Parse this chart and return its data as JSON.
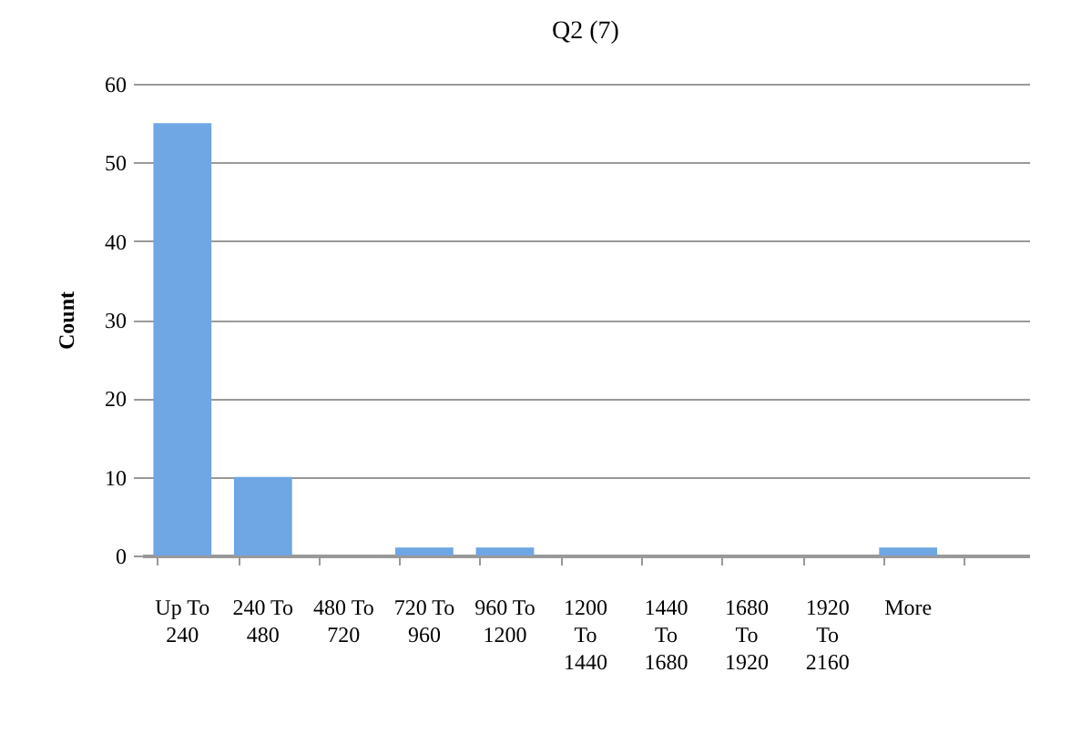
{
  "chart_data": {
    "type": "bar",
    "title": "Q2 (7)",
    "ylabel": "Count",
    "categories": [
      "Up To 240",
      "240 To 480",
      "480 To 720",
      "720 To 960",
      "960 To 1200",
      "1200 To 1440",
      "1440 To 1680",
      "1680 To 1920",
      "1920 To 2160",
      "More",
      null
    ],
    "values": [
      55,
      10,
      0,
      1,
      1,
      0,
      0,
      0,
      0,
      1,
      null
    ],
    "color": "#6fa6e4",
    "ylim": [
      0,
      60
    ],
    "yticks": [
      0,
      10,
      20,
      30,
      40,
      50,
      60
    ],
    "grid": "y"
  }
}
